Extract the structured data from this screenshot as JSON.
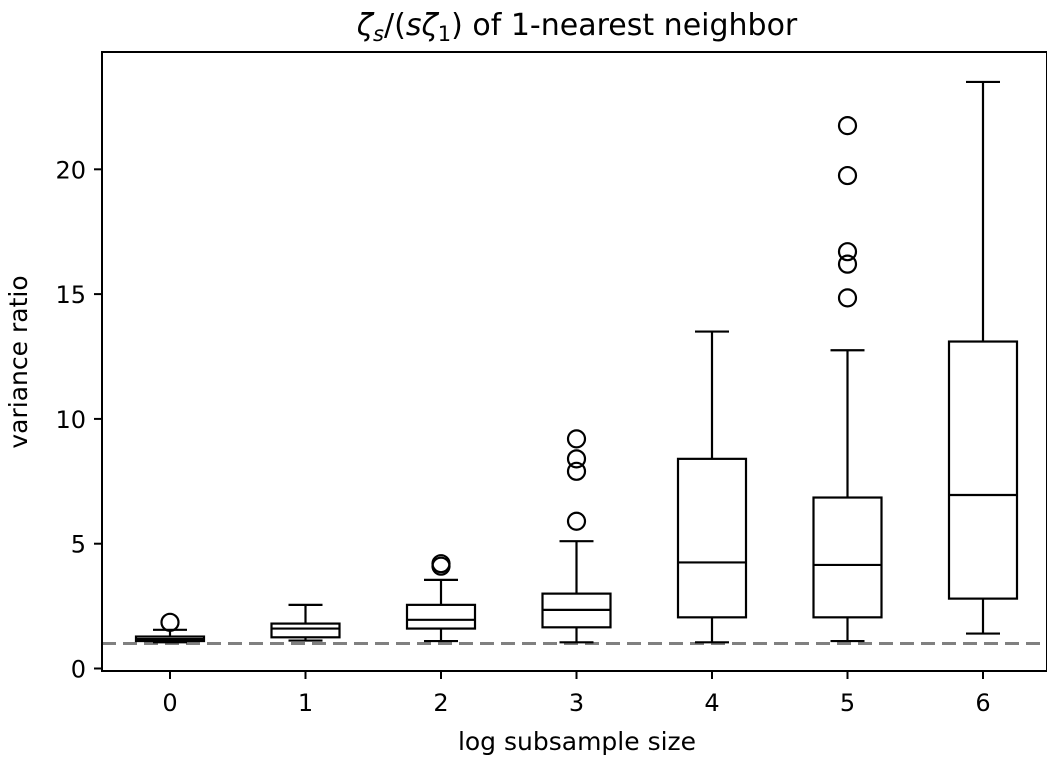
{
  "chart_data": {
    "type": "boxplot",
    "title": "ζs/(sζ1) of 1-nearest neighbor",
    "title_parts": {
      "zeta_s_base": "ζ",
      "zeta_s_sub": "s",
      "slash_open": "/(",
      "s_italic": "s",
      "zeta_1_base": "ζ",
      "zeta_1_sub": "1",
      "tail": ") of 1-nearest neighbor"
    },
    "xlabel": "log subsample size",
    "ylabel": "variance ratio",
    "categories": [
      "0",
      "1",
      "2",
      "3",
      "4",
      "5",
      "6"
    ],
    "yticks": [
      0,
      5,
      10,
      15,
      20
    ],
    "ylim": [
      -0.1,
      24.7
    ],
    "reference_line": {
      "y": 1.0,
      "style": "dashed",
      "color": "#808080"
    },
    "boxes": [
      {
        "x": "0",
        "whislo": 1.05,
        "q1": 1.1,
        "med": 1.18,
        "q3": 1.28,
        "whishi": 1.55,
        "fliers": [
          1.85
        ]
      },
      {
        "x": "1",
        "whislo": 1.12,
        "q1": 1.25,
        "med": 1.6,
        "q3": 1.8,
        "whishi": 2.55,
        "fliers": []
      },
      {
        "x": "2",
        "whislo": 1.1,
        "q1": 1.6,
        "med": 1.95,
        "q3": 2.55,
        "whishi": 3.55,
        "fliers": [
          4.1,
          4.2
        ]
      },
      {
        "x": "3",
        "whislo": 1.05,
        "q1": 1.65,
        "med": 2.35,
        "q3": 3.0,
        "whishi": 5.1,
        "fliers": [
          5.9,
          7.9,
          8.4,
          9.2
        ]
      },
      {
        "x": "4",
        "whislo": 1.05,
        "q1": 2.05,
        "med": 4.25,
        "q3": 8.4,
        "whishi": 13.5,
        "fliers": []
      },
      {
        "x": "5",
        "whislo": 1.1,
        "q1": 2.05,
        "med": 4.15,
        "q3": 6.85,
        "whishi": 12.75,
        "fliers": [
          14.85,
          16.2,
          16.7,
          19.75,
          21.75
        ]
      },
      {
        "x": "6",
        "whislo": 1.4,
        "q1": 2.8,
        "med": 6.95,
        "q3": 13.1,
        "whishi": 23.5,
        "fliers": []
      }
    ],
    "colors": {
      "box": "#000000",
      "reference": "#808080",
      "background": "#ffffff"
    },
    "grid": false,
    "legend": "none"
  }
}
